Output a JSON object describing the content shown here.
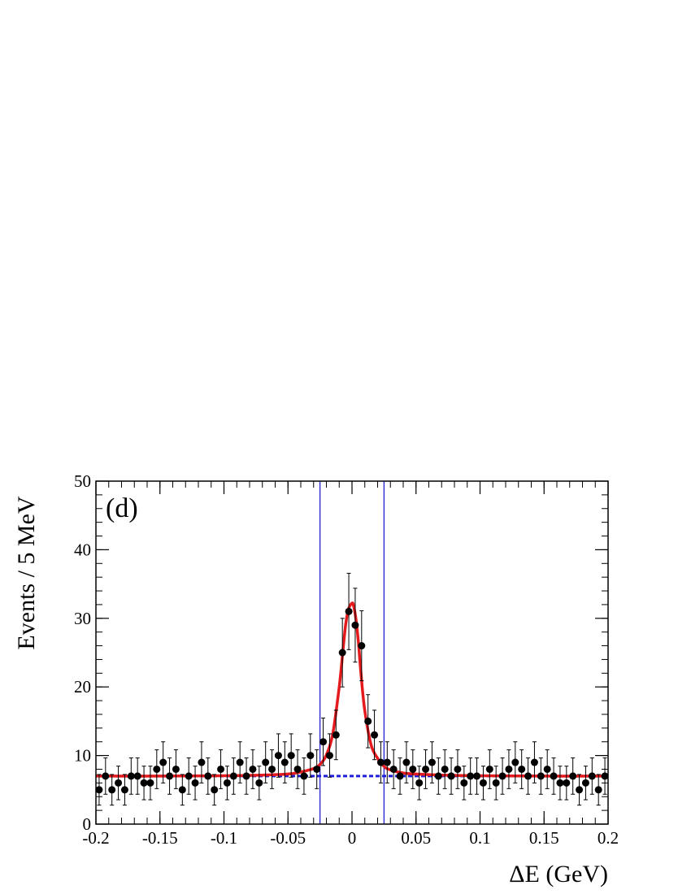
{
  "chart_data": {
    "type": "scatter",
    "panel_label": "(d)",
    "xlabel": "ΔE  (GeV)",
    "ylabel": "Events / 5 MeV",
    "xlim": [
      -0.2,
      0.2
    ],
    "ylim": [
      0,
      50
    ],
    "x_ticks": [
      -0.2,
      -0.15,
      -0.1,
      -0.05,
      0,
      0.05,
      0.1,
      0.15,
      0.2
    ],
    "x_tick_labels": [
      "-0.2",
      "-0.15",
      "-0.1",
      "-0.05",
      "0",
      "0.05",
      "0.1",
      "0.15",
      "0.2"
    ],
    "y_ticks": [
      0,
      10,
      20,
      30,
      40,
      50
    ],
    "y_tick_labels": [
      "0",
      "10",
      "20",
      "30",
      "40",
      "50"
    ],
    "grid": false,
    "legend": "none",
    "signal_window": [
      -0.025,
      0.025
    ],
    "series": [
      {
        "kind": "data_points_with_errors",
        "color": "#000000",
        "x": [
          -0.1975,
          -0.1925,
          -0.1875,
          -0.1825,
          -0.1775,
          -0.1725,
          -0.1675,
          -0.1625,
          -0.1575,
          -0.1525,
          -0.1475,
          -0.1425,
          -0.1375,
          -0.1325,
          -0.1275,
          -0.1225,
          -0.1175,
          -0.1125,
          -0.1075,
          -0.1025,
          -0.0975,
          -0.0925,
          -0.0875,
          -0.0825,
          -0.0775,
          -0.0725,
          -0.0675,
          -0.0625,
          -0.0575,
          -0.0525,
          -0.0475,
          -0.0425,
          -0.0375,
          -0.0325,
          -0.0275,
          -0.0225,
          -0.0175,
          -0.0125,
          -0.0075,
          -0.0025,
          0.0025,
          0.0075,
          0.0125,
          0.0175,
          0.0225,
          0.0275,
          0.0325,
          0.0375,
          0.0425,
          0.0475,
          0.0525,
          0.0575,
          0.0625,
          0.0675,
          0.0725,
          0.0775,
          0.0825,
          0.0875,
          0.0925,
          0.0975,
          0.1025,
          0.1075,
          0.1125,
          0.1175,
          0.1225,
          0.1275,
          0.1325,
          0.1375,
          0.1425,
          0.1475,
          0.1525,
          0.1575,
          0.1625,
          0.1675,
          0.1725,
          0.1775,
          0.1825,
          0.1875,
          0.1925,
          0.1975
        ],
        "y": [
          5,
          7,
          5,
          6,
          5,
          7,
          7,
          6,
          6,
          8,
          9,
          7,
          8,
          5,
          7,
          6,
          9,
          7,
          5,
          8,
          6,
          7,
          9,
          7,
          8,
          6,
          9,
          8,
          10,
          9,
          10,
          8,
          7,
          10,
          8,
          12,
          10,
          13,
          25,
          31,
          29,
          26,
          15,
          13,
          9,
          9,
          8,
          7,
          9,
          8,
          6,
          8,
          9,
          7,
          8,
          7,
          8,
          6,
          7,
          7,
          6,
          8,
          6,
          7,
          8,
          9,
          8,
          7,
          9,
          7,
          8,
          7,
          6,
          6,
          7,
          5,
          6,
          7,
          5,
          7
        ]
      },
      {
        "kind": "total_fit_curve",
        "color": "#e41a1c",
        "x": [
          -0.2,
          -0.15,
          -0.1,
          -0.07,
          -0.05,
          -0.04,
          -0.03,
          -0.025,
          -0.02,
          -0.015,
          -0.01,
          -0.007,
          -0.005,
          -0.003,
          -0.001,
          0,
          0.001,
          0.003,
          0.005,
          0.007,
          0.01,
          0.015,
          0.02,
          0.025,
          0.03,
          0.04,
          0.05,
          0.07,
          0.1,
          0.15,
          0.2
        ],
        "y": [
          7.0,
          7.0,
          7.05,
          7.15,
          7.3,
          7.6,
          8.1,
          8.7,
          10.1,
          13.2,
          20.0,
          25.5,
          29.0,
          31.2,
          32.0,
          32.2,
          32.0,
          30.0,
          26.5,
          22.0,
          16.5,
          11.5,
          9.6,
          8.4,
          7.9,
          7.45,
          7.3,
          7.15,
          7.05,
          7.0,
          7.0
        ]
      },
      {
        "kind": "background_fit",
        "color": "#1f1fd6",
        "style": "dashed",
        "x": [
          -0.2,
          0.2
        ],
        "y": [
          7.0,
          7.0
        ]
      }
    ]
  }
}
